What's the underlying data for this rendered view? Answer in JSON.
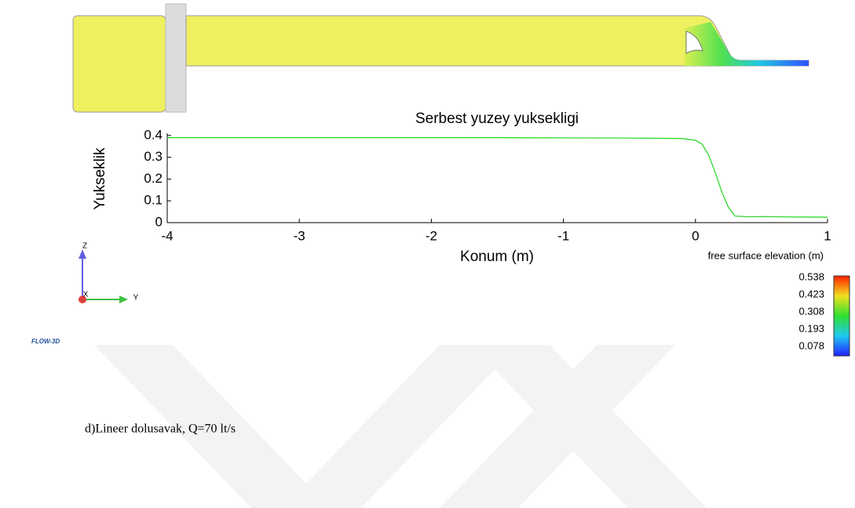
{
  "chart_data": {
    "type": "line",
    "title": "Serbest yuzey yuksekligi",
    "x_label": "Konum (m)",
    "y_label": "Yukseklik",
    "x": [
      -4,
      -3,
      -2,
      -1.5,
      -1,
      -0.5,
      -0.1,
      0,
      0.05,
      0.1,
      0.15,
      0.2,
      0.25,
      0.3,
      0.4,
      0.5,
      0.75,
      1
    ],
    "series": [
      {
        "name": "Serbest yuzey yuksekligi",
        "color": "#2fd82f",
        "values": [
          0.39,
          0.39,
          0.39,
          0.39,
          0.389,
          0.388,
          0.386,
          0.378,
          0.36,
          0.31,
          0.23,
          0.14,
          0.07,
          0.03,
          0.027,
          0.028,
          0.026,
          0.025
        ]
      }
    ],
    "xlim": [
      -4,
      1
    ],
    "xticks": [
      -4,
      -3,
      -2,
      -1,
      0,
      1
    ],
    "ylim": [
      0,
      0.41
    ],
    "yticks": [
      0,
      0.1,
      0.2,
      0.3,
      0.4
    ]
  },
  "colorbar": {
    "label": "free surface elevation (m)",
    "ticks": [
      0.538,
      0.423,
      0.308,
      0.193,
      0.078
    ]
  },
  "triad": {
    "z": "Z",
    "y": "Y",
    "x": "X"
  },
  "logo": "FLOW-3D",
  "caption": "d)Lineer dolusavak, Q=70 lt/s"
}
